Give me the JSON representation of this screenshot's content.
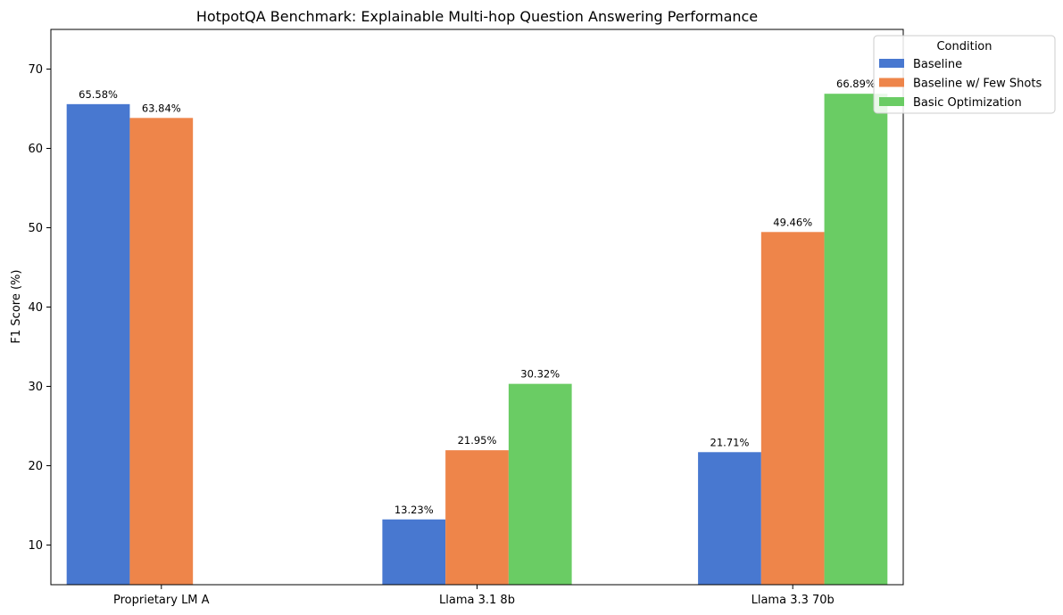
{
  "chart_data": {
    "type": "bar",
    "title": "HotpotQA Benchmark: Explainable Multi-hop Question Answering Performance",
    "xlabel": "",
    "ylabel": "F1 Score (%)",
    "categories": [
      "Proprietary LM A",
      "Llama 3.1 8b",
      "Llama 3.3 70b"
    ],
    "series": [
      {
        "name": "Baseline",
        "color": "#4878d0",
        "values": [
          65.58,
          13.23,
          21.71
        ],
        "labels": [
          "65.58%",
          "13.23%",
          "21.71%"
        ]
      },
      {
        "name": "Baseline w/ Few Shots",
        "color": "#ee854a",
        "values": [
          63.84,
          21.95,
          49.46
        ],
        "labels": [
          "63.84%",
          "21.95%",
          "49.46%"
        ]
      },
      {
        "name": "Basic Optimization",
        "color": "#6acc64",
        "values": [
          null,
          30.32,
          66.89
        ],
        "labels": [
          null,
          "30.32%",
          "66.89%"
        ]
      }
    ],
    "ylim": [
      5,
      75
    ],
    "yticks": [
      10,
      20,
      30,
      40,
      50,
      60,
      70
    ],
    "grid": false,
    "legend": {
      "title": "Condition",
      "placement": "top-right (outside)"
    }
  }
}
